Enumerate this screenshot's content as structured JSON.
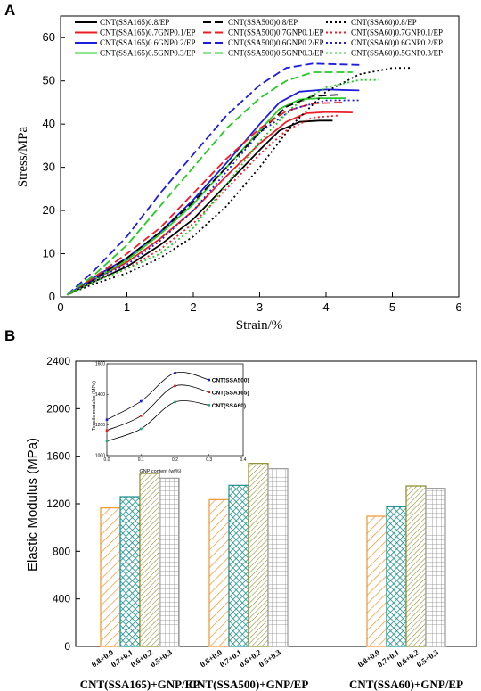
{
  "panel_a_letter": "A",
  "panel_b_letter": "B",
  "chart_data": [
    {
      "type": "line",
      "xlabel": "Strain/%",
      "ylabel": "Stress/MPa",
      "xlim": [
        0,
        6
      ],
      "ylim": [
        0,
        65
      ],
      "xticks": [
        "0",
        "1",
        "2",
        "3",
        "4",
        "5",
        "6"
      ],
      "yticks": [
        "0",
        "10",
        "20",
        "30",
        "40",
        "50",
        "60"
      ],
      "legend_position": "top",
      "series": [
        {
          "name": "CNT(SSA165)0.8/EP",
          "color": "#000000",
          "dash": "solid",
          "points": [
            [
              0.1,
              0.5
            ],
            [
              0.5,
              3.5
            ],
            [
              1.0,
              7
            ],
            [
              1.5,
              12
            ],
            [
              2.0,
              18
            ],
            [
              2.5,
              26
            ],
            [
              3.0,
              34
            ],
            [
              3.3,
              38.5
            ],
            [
              3.6,
              40.5
            ],
            [
              3.9,
              40.8
            ],
            [
              4.1,
              40.8
            ]
          ]
        },
        {
          "name": "CNT(SSA165)0.7GNP0.1/EP",
          "color": "#ee1c25",
          "dash": "solid",
          "points": [
            [
              0.1,
              0.5
            ],
            [
              0.5,
              4
            ],
            [
              1.0,
              8
            ],
            [
              1.5,
              13.5
            ],
            [
              2.0,
              20
            ],
            [
              2.5,
              28
            ],
            [
              3.0,
              35.5
            ],
            [
              3.4,
              40.5
            ],
            [
              3.7,
              42.5
            ],
            [
              4.0,
              42.8
            ],
            [
              4.4,
              42.7
            ]
          ]
        },
        {
          "name": "CNT(SSA165)0.6GNP0.2/EP",
          "color": "#1d1ddd",
          "dash": "solid",
          "points": [
            [
              0.1,
              0.5
            ],
            [
              0.5,
              4.5
            ],
            [
              1.0,
              9
            ],
            [
              1.5,
              15
            ],
            [
              2.0,
              22.5
            ],
            [
              2.5,
              31
            ],
            [
              3.0,
              40
            ],
            [
              3.3,
              45
            ],
            [
              3.6,
              47.5
            ],
            [
              4.0,
              48
            ],
            [
              4.5,
              47.8
            ]
          ]
        },
        {
          "name": "CNT(SSA165)0.5GNP0.3/EP",
          "color": "#22cc22",
          "dash": "solid",
          "points": [
            [
              0.1,
              0.5
            ],
            [
              0.5,
              4
            ],
            [
              1.0,
              8.5
            ],
            [
              1.5,
              14.5
            ],
            [
              2.0,
              21.5
            ],
            [
              2.5,
              30
            ],
            [
              3.0,
              38.5
            ],
            [
              3.3,
              43.5
            ],
            [
              3.6,
              45.7
            ],
            [
              3.9,
              46
            ],
            [
              4.3,
              46
            ]
          ]
        },
        {
          "name": "CNT(SSA500)0.8/EP",
          "color": "#000000",
          "dash": "dash",
          "points": [
            [
              0.1,
              0.5
            ],
            [
              0.5,
              4
            ],
            [
              1.0,
              9
            ],
            [
              1.5,
              15
            ],
            [
              2.0,
              22
            ],
            [
              2.5,
              30
            ],
            [
              3.0,
              38
            ],
            [
              3.4,
              44
            ],
            [
              3.8,
              46.5
            ],
            [
              4.2,
              46.8
            ]
          ]
        },
        {
          "name": "CNT(SSA500)0.7GNP0.1/EP",
          "color": "#ee1c25",
          "dash": "dash",
          "points": [
            [
              0.1,
              0.5
            ],
            [
              0.5,
              4.5
            ],
            [
              1.0,
              10
            ],
            [
              1.5,
              16
            ],
            [
              2.0,
              24
            ],
            [
              2.5,
              32
            ],
            [
              3.0,
              39
            ],
            [
              3.4,
              43
            ],
            [
              3.8,
              44.8
            ],
            [
              4.3,
              45
            ]
          ]
        },
        {
          "name": "CNT(SSA500)0.6GNP0.2/EP",
          "color": "#1d1ddd",
          "dash": "dash",
          "points": [
            [
              0.1,
              0.5
            ],
            [
              0.5,
              6
            ],
            [
              1.0,
              14
            ],
            [
              1.5,
              24
            ],
            [
              2.0,
              33
            ],
            [
              2.5,
              42
            ],
            [
              3.0,
              49
            ],
            [
              3.4,
              53
            ],
            [
              3.8,
              54
            ],
            [
              4.5,
              53.7
            ]
          ]
        },
        {
          "name": "CNT(SSA500)0.5GNP0.3/EP",
          "color": "#22cc22",
          "dash": "dash",
          "points": [
            [
              0.1,
              0.5
            ],
            [
              0.5,
              5
            ],
            [
              1.0,
              12
            ],
            [
              1.5,
              21
            ],
            [
              2.0,
              30
            ],
            [
              2.5,
              39
            ],
            [
              3.0,
              46
            ],
            [
              3.4,
              50
            ],
            [
              3.8,
              52
            ],
            [
              4.4,
              52
            ]
          ]
        },
        {
          "name": "CNT(SSA60)0.8/EP",
          "color": "#000000",
          "dash": "dot",
          "points": [
            [
              0.1,
              0.5
            ],
            [
              0.5,
              3
            ],
            [
              1.0,
              5.5
            ],
            [
              1.5,
              9
            ],
            [
              2.0,
              14
            ],
            [
              2.5,
              21
            ],
            [
              3.0,
              30
            ],
            [
              3.5,
              40
            ],
            [
              4.0,
              47.5
            ],
            [
              4.5,
              51.5
            ],
            [
              5.0,
              53
            ],
            [
              5.3,
              53
            ]
          ]
        },
        {
          "name": "CNT(SSA60)0.7GNP0.1/EP",
          "color": "#ee1c25",
          "dash": "dot",
          "points": [
            [
              0.1,
              0.5
            ],
            [
              0.5,
              3.5
            ],
            [
              1.0,
              6.5
            ],
            [
              1.5,
              11
            ],
            [
              2.0,
              17
            ],
            [
              2.5,
              25
            ],
            [
              3.0,
              33
            ],
            [
              3.4,
              38.5
            ],
            [
              3.8,
              41.5
            ],
            [
              4.2,
              42
            ]
          ]
        },
        {
          "name": "CNT(SSA60)0.6GNP0.2/EP",
          "color": "#1d1ddd",
          "dash": "dot",
          "points": [
            [
              0.1,
              0.5
            ],
            [
              0.5,
              4
            ],
            [
              1.0,
              7.5
            ],
            [
              1.5,
              13
            ],
            [
              2.0,
              20
            ],
            [
              2.5,
              29
            ],
            [
              3.0,
              38
            ],
            [
              3.5,
              43.5
            ],
            [
              4.0,
              45.5
            ],
            [
              4.5,
              45.5
            ]
          ]
        },
        {
          "name": "CNT(SSA60)0.5GNP0.3/EP",
          "color": "#22cc22",
          "dash": "dot",
          "points": [
            [
              0.1,
              0.5
            ],
            [
              0.5,
              3.5
            ],
            [
              1.0,
              6.5
            ],
            [
              1.5,
              10
            ],
            [
              2.0,
              16
            ],
            [
              2.5,
              26
            ],
            [
              3.0,
              36
            ],
            [
              3.5,
              44
            ],
            [
              4.0,
              48.5
            ],
            [
              4.5,
              50.2
            ],
            [
              4.8,
              50.2
            ]
          ]
        }
      ]
    },
    {
      "type": "bar",
      "ylabel": "Elastic Modulus (MPa)",
      "ylim": [
        0,
        2400
      ],
      "yticks": [
        "0",
        "400",
        "800",
        "1200",
        "1600",
        "2000",
        "2400"
      ],
      "groups": [
        "CNT(SSA165)+GNP/EP",
        "CNT(SSA500)+GNP/EP",
        "CNT(SSA60)+GNP/EP"
      ],
      "bar_labels": [
        "0.8+0.0",
        "0.7+0.1",
        "0.6+0.2",
        "0.5+0.3"
      ],
      "bar_colors": [
        "#f0932b",
        "#1a8e8e",
        "#8a8a2a",
        "#9a9a9a"
      ],
      "bar_patterns": [
        "diagonal",
        "crosshatch",
        "diagonal-dense",
        "grid"
      ],
      "values": [
        [
          1165,
          1260,
          1455,
          1415
        ],
        [
          1235,
          1355,
          1540,
          1495
        ],
        [
          1095,
          1175,
          1350,
          1330
        ]
      ],
      "inset": {
        "type": "line",
        "xlabel": "GNP content (wt%)",
        "ylabel": "Tensile modulus (MPa)",
        "xlim": [
          0.0,
          0.4
        ],
        "ylim": [
          1000,
          1600
        ],
        "xticks": [
          "0.0",
          "0.1",
          "0.2",
          "0.3",
          "0.4"
        ],
        "yticks": [
          "1000",
          "1200",
          "1400",
          "1600"
        ],
        "series": [
          {
            "name": "CNT(SSA500)",
            "color": "#1d1ddd",
            "points": [
              [
                0.0,
                1235
              ],
              [
                0.1,
                1355
              ],
              [
                0.2,
                1540
              ],
              [
                0.3,
                1495
              ]
            ]
          },
          {
            "name": "CNT(SSA165)",
            "color": "#ee1c25",
            "points": [
              [
                0.0,
                1165
              ],
              [
                0.1,
                1260
              ],
              [
                0.2,
                1455
              ],
              [
                0.3,
                1415
              ]
            ]
          },
          {
            "name": "CNT(SSA60)",
            "color": "#22aa88",
            "points": [
              [
                0.0,
                1095
              ],
              [
                0.1,
                1175
              ],
              [
                0.2,
                1350
              ],
              [
                0.3,
                1330
              ]
            ]
          }
        ]
      }
    }
  ]
}
